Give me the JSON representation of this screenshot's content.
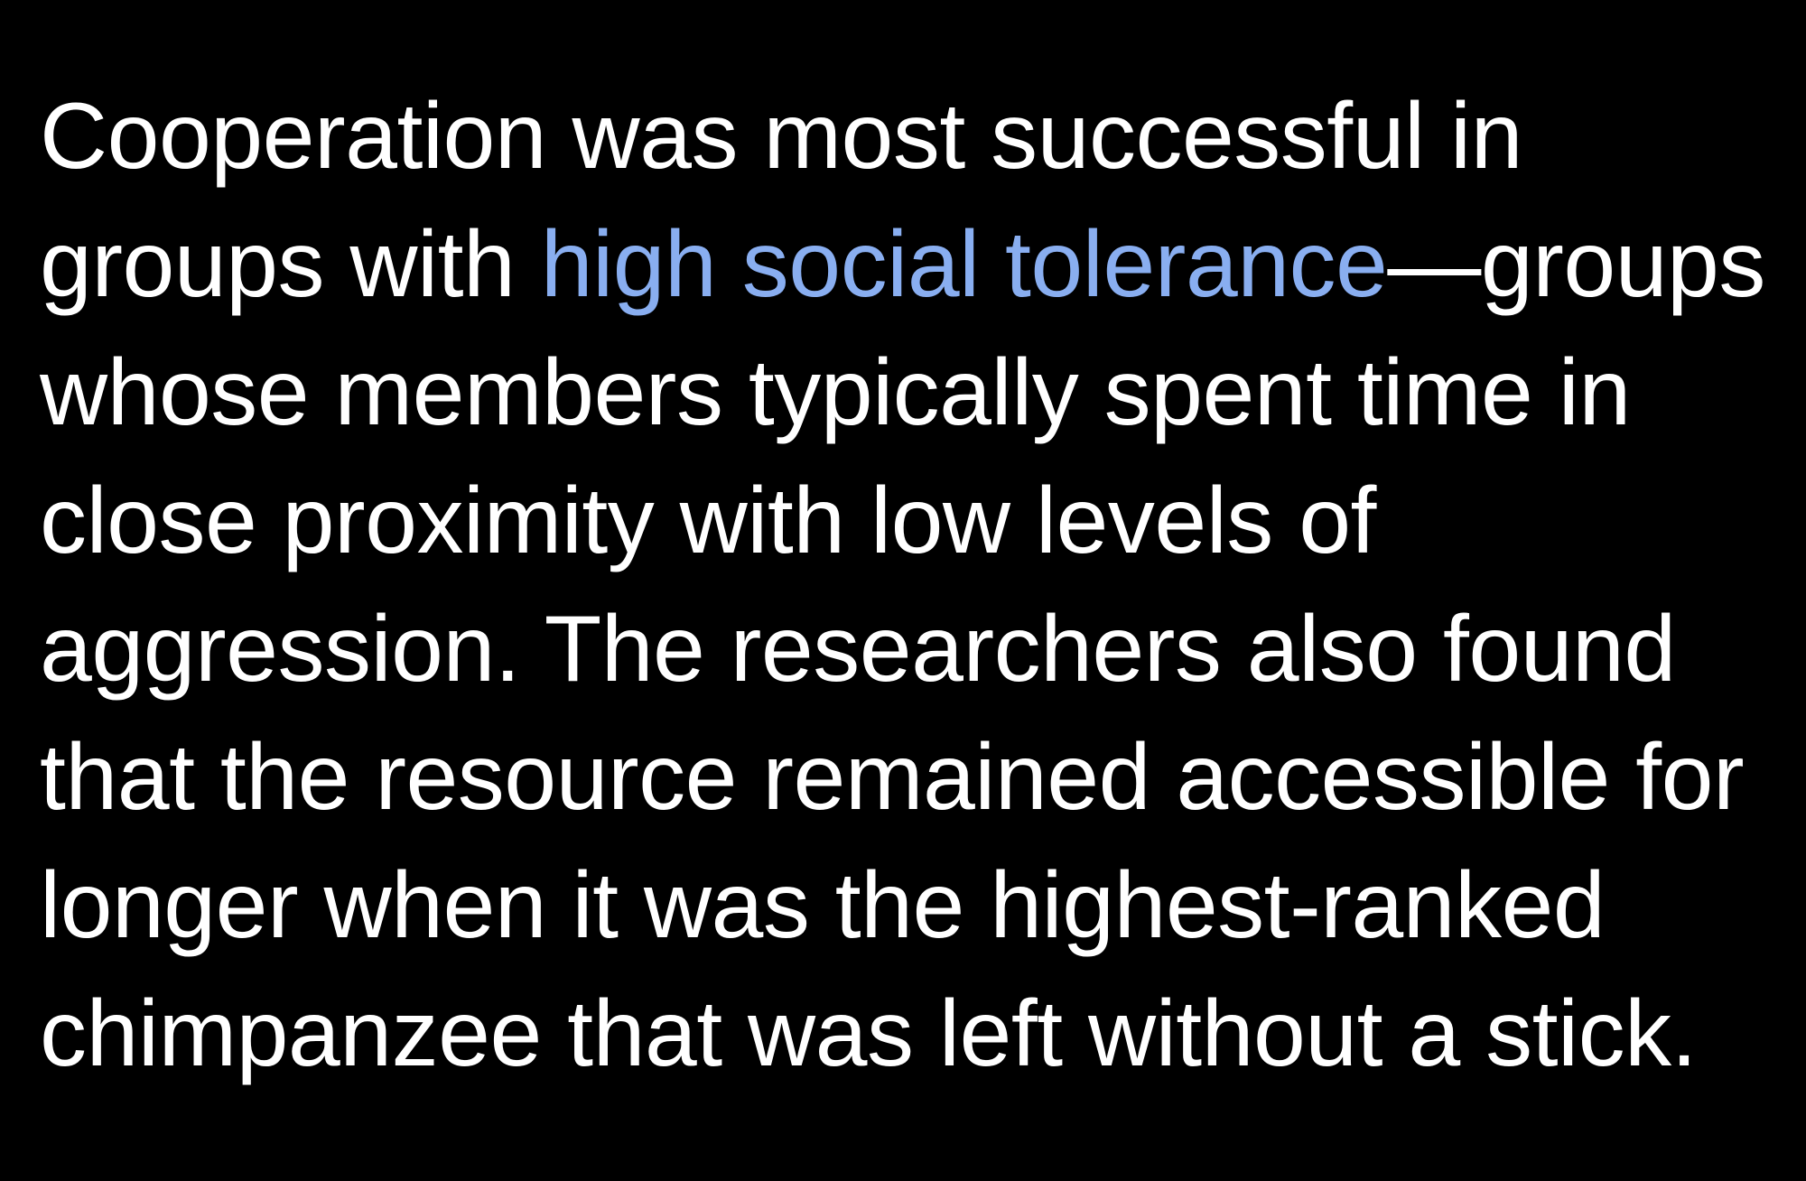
{
  "paragraph": {
    "lines": [
      "Cooperation was most successful in",
      {
        "before": "groups with ",
        "link": "high social tolerance",
        "after": "—groups"
      },
      "whose members typically spent time in",
      "close proximity with low levels of",
      "aggression. The researchers also found",
      "that the resource remained accessible for",
      "longer when it was the highest-ranked",
      "chimpanzee that was left without a stick."
    ]
  }
}
